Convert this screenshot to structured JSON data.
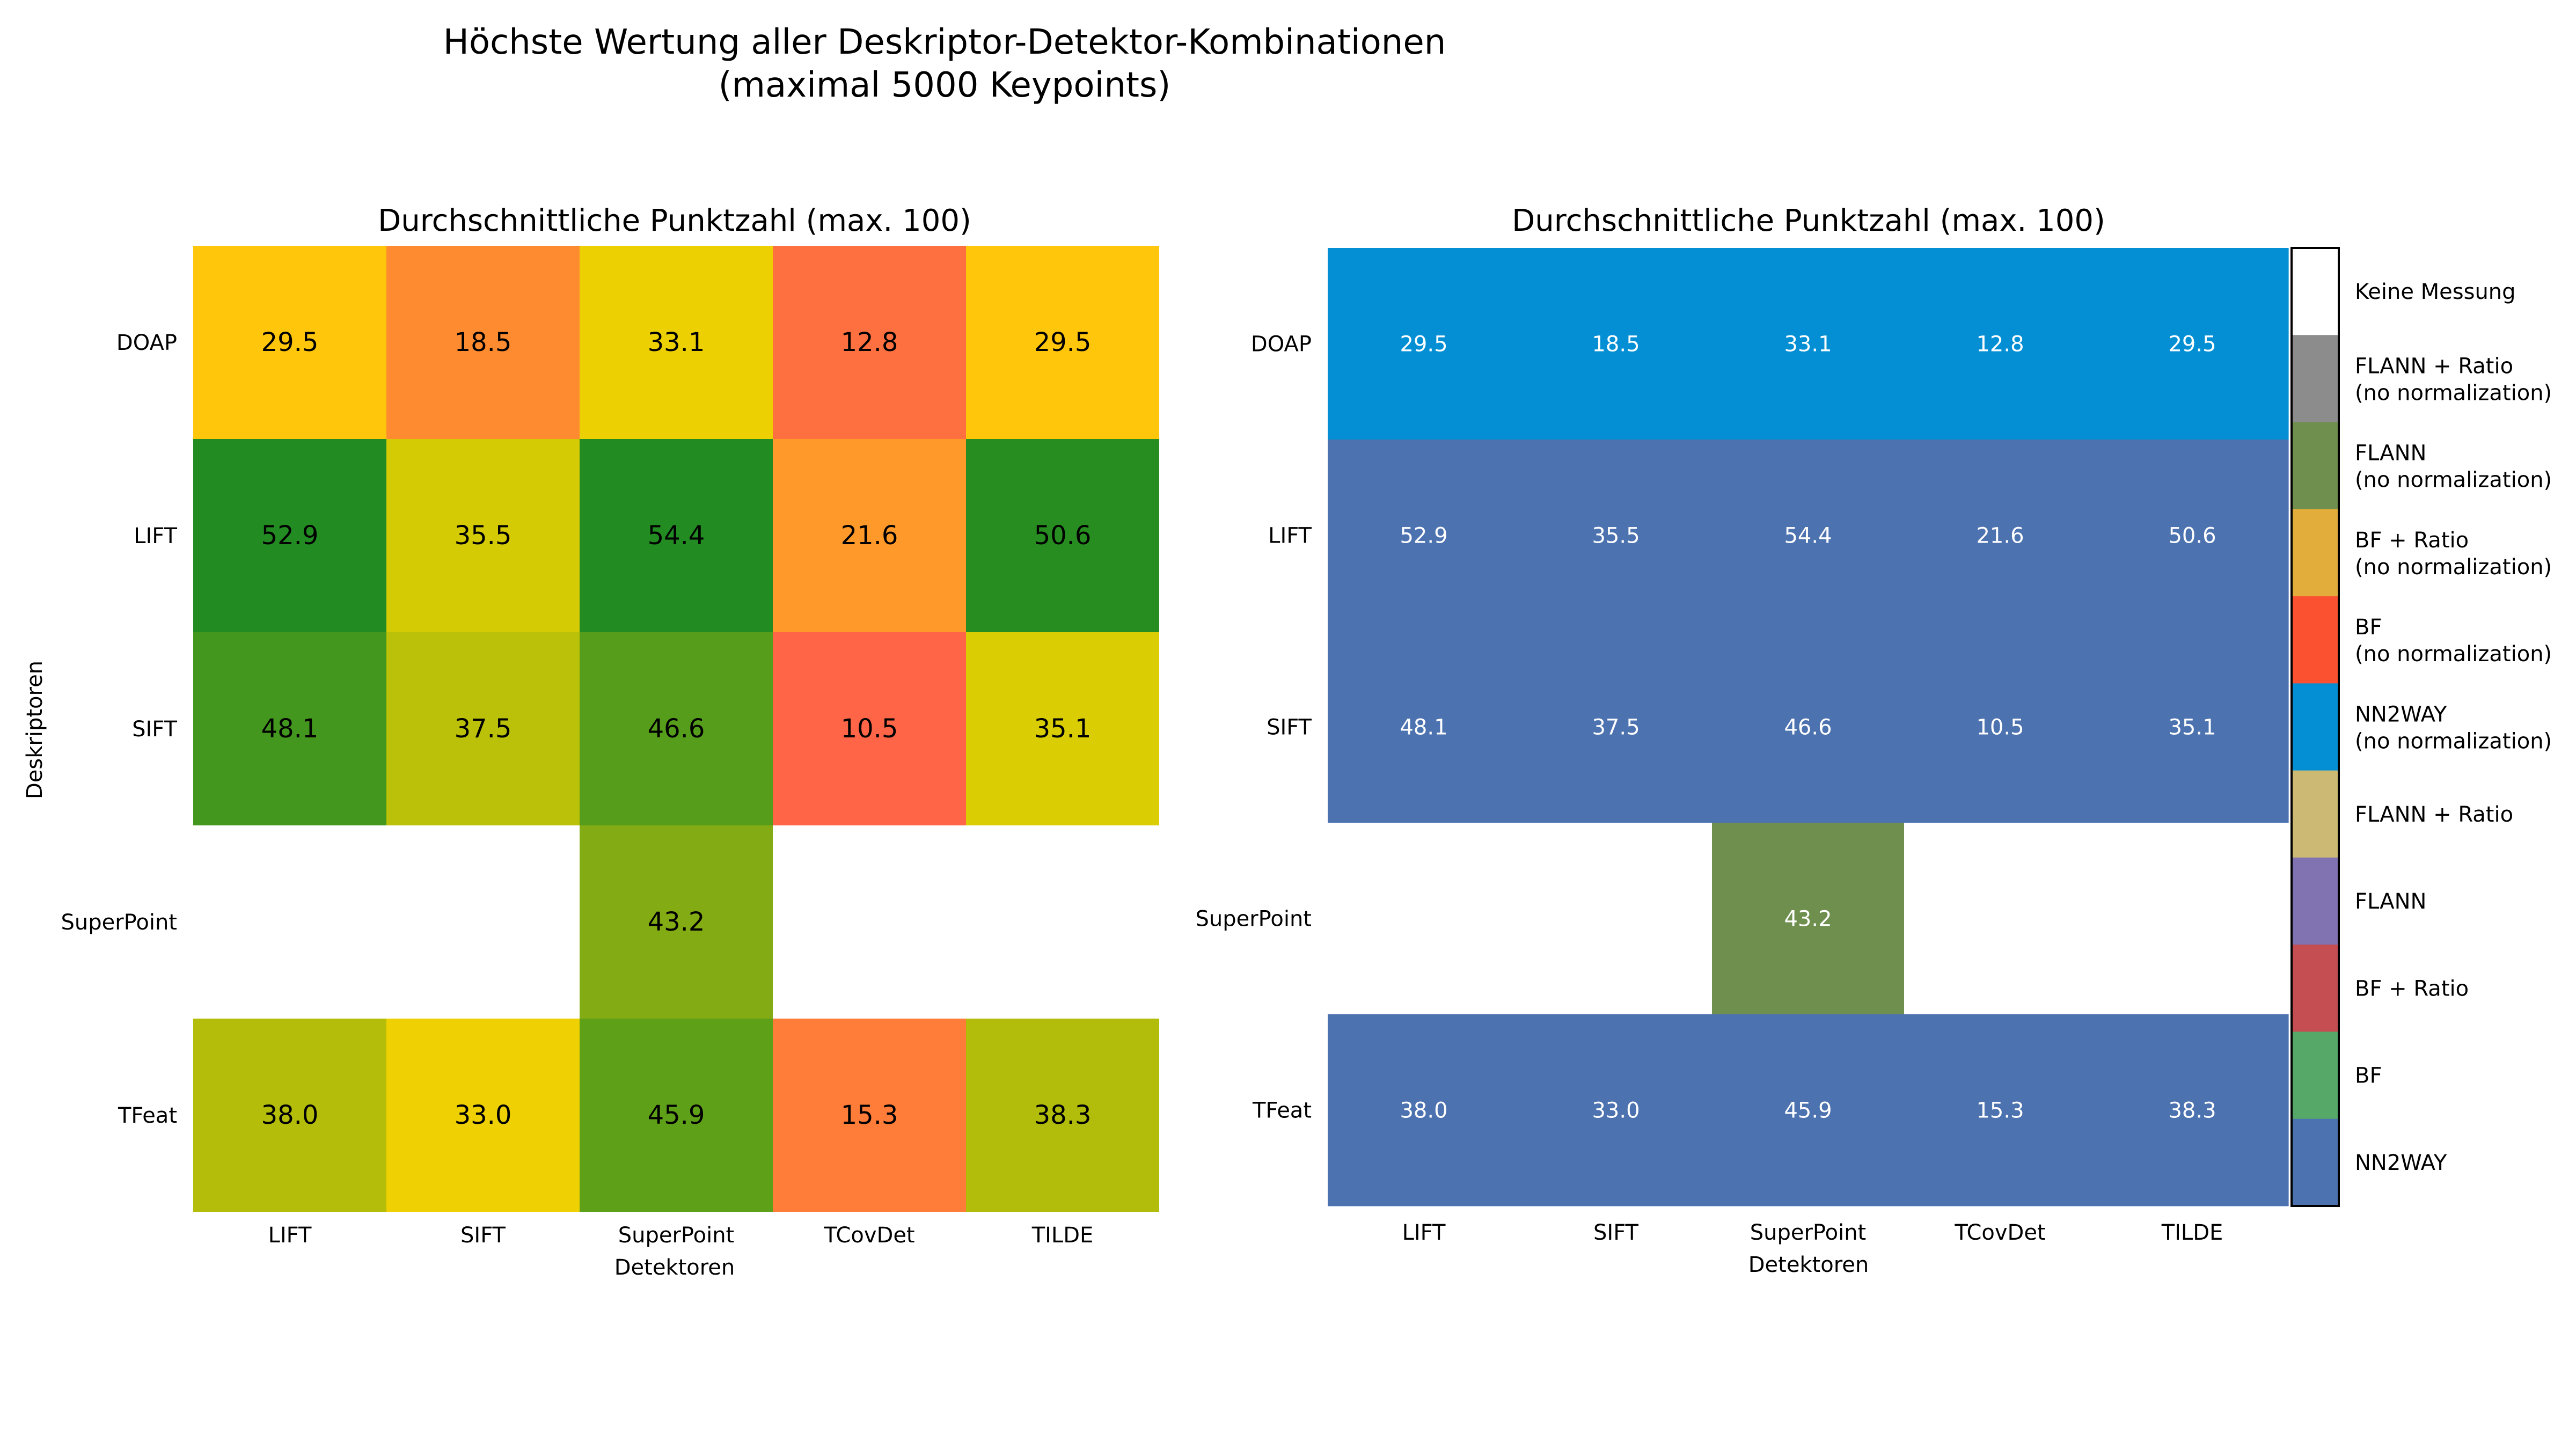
{
  "figure": {
    "title_line1": "Höchste Wertung aller Deskriptor-Detektor-Kombinationen",
    "title_line2": "(maximal 5000 Keypoints)"
  },
  "chart_data": [
    {
      "type": "heatmap",
      "title": "Durchschnittliche Punktzahl (max. 100)",
      "xlabel": "Detektoren",
      "ylabel": "Deskriptoren",
      "x_categories": [
        "LIFT",
        "SIFT",
        "SuperPoint",
        "TCovDet",
        "TILDE"
      ],
      "y_categories": [
        "DOAP",
        "LIFT",
        "SIFT",
        "SuperPoint",
        "TFeat"
      ],
      "values": [
        [
          29.5,
          18.5,
          33.1,
          12.8,
          29.5
        ],
        [
          52.9,
          35.5,
          54.4,
          21.6,
          50.6
        ],
        [
          48.1,
          37.5,
          46.6,
          10.5,
          35.1
        ],
        [
          null,
          null,
          43.2,
          null,
          null
        ],
        [
          38.0,
          33.0,
          45.9,
          15.3,
          38.3
        ]
      ],
      "value_labels": [
        [
          "29.5",
          "18.5",
          "33.1",
          "12.8",
          "29.5"
        ],
        [
          "52.9",
          "35.5",
          "54.4",
          "21.6",
          "50.6"
        ],
        [
          "48.1",
          "37.5",
          "46.6",
          "10.5",
          "35.1"
        ],
        [
          "",
          "",
          "43.2",
          "",
          ""
        ],
        [
          "38.0",
          "33.0",
          "45.9",
          "15.3",
          "38.3"
        ]
      ],
      "colormap": "red-yellow-green",
      "grid": false
    },
    {
      "type": "heatmap",
      "title": "Durchschnittliche Punktzahl (max. 100)",
      "xlabel": "Detektoren",
      "ylabel": "",
      "x_categories": [
        "LIFT",
        "SIFT",
        "SuperPoint",
        "TCovDet",
        "TILDE"
      ],
      "y_categories": [
        "DOAP",
        "LIFT",
        "SIFT",
        "SuperPoint",
        "TFeat"
      ],
      "value_labels": [
        [
          "29.5",
          "18.5",
          "33.1",
          "12.8",
          "29.5"
        ],
        [
          "52.9",
          "35.5",
          "54.4",
          "21.6",
          "50.6"
        ],
        [
          "48.1",
          "37.5",
          "46.6",
          "10.5",
          "35.1"
        ],
        [
          "",
          "",
          "43.2",
          "",
          ""
        ],
        [
          "38.0",
          "33.0",
          "45.9",
          "15.3",
          "38.3"
        ]
      ],
      "matcher": [
        [
          "NN2WAY (no normalization)",
          "NN2WAY (no normalization)",
          "NN2WAY (no normalization)",
          "NN2WAY (no normalization)",
          "NN2WAY (no normalization)"
        ],
        [
          "NN2WAY",
          "NN2WAY",
          "NN2WAY",
          "NN2WAY",
          "NN2WAY"
        ],
        [
          "NN2WAY",
          "NN2WAY",
          "NN2WAY",
          "NN2WAY",
          "NN2WAY"
        ],
        [
          "Keine Messung",
          "Keine Messung",
          "FLANN (no normalization)",
          "Keine Messung",
          "Keine Messung"
        ],
        [
          "NN2WAY",
          "NN2WAY",
          "NN2WAY",
          "NN2WAY",
          "NN2WAY"
        ]
      ],
      "legend": [
        {
          "label": "Keine Messung",
          "color": "#ffffff"
        },
        {
          "label": "FLANN + Ratio\n(no normalization)",
          "color": "#8c8c8c"
        },
        {
          "label": "FLANN\n(no normalization)",
          "color": "#6e8f4e"
        },
        {
          "label": "BF + Ratio\n(no normalization)",
          "color": "#e2ad3a"
        },
        {
          "label": "BF\n(no normalization)",
          "color": "#fc5130"
        },
        {
          "label": "NN2WAY\n(no normalization)",
          "color": "#048fd4"
        },
        {
          "label": "FLANN + Ratio",
          "color": "#ccb974"
        },
        {
          "label": "FLANN",
          "color": "#8172b2"
        },
        {
          "label": "BF + Ratio",
          "color": "#c44e52"
        },
        {
          "label": "BF",
          "color": "#55a868"
        },
        {
          "label": "NN2WAY",
          "color": "#4c72b0"
        }
      ],
      "legend_placement": "right",
      "grid": false
    }
  ]
}
